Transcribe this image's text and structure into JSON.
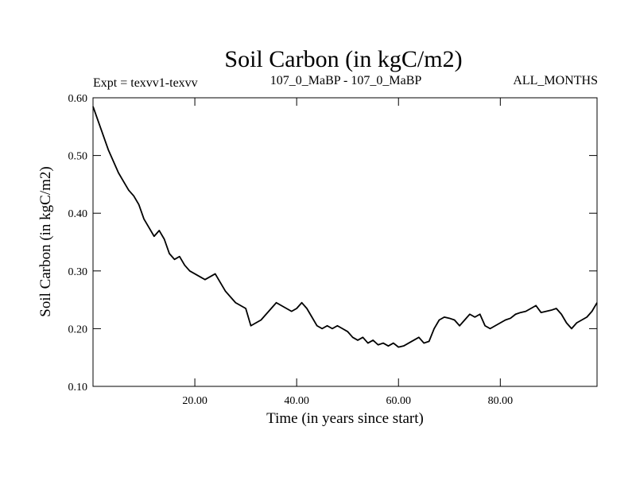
{
  "chart_data": {
    "type": "line",
    "title": "Soil Carbon (in kgC/m2)",
    "subtitle_left": "Expt = texvv1-texvv",
    "subtitle_center": "107_0_MaBP - 107_0_MaBP",
    "subtitle_right": "ALL_MONTHS",
    "xlabel": "Time (in years since start)",
    "ylabel": "Soil Carbon (in kgC/m2)",
    "xlim": [
      0,
      99
    ],
    "ylim": [
      0.1,
      0.6
    ],
    "xticks": [
      20,
      40,
      60,
      80
    ],
    "xtick_labels": [
      "20.00",
      "40.00",
      "60.00",
      "80.00"
    ],
    "yticks": [
      0.1,
      0.2,
      0.3,
      0.4,
      0.5,
      0.6
    ],
    "ytick_labels": [
      "0.10",
      "0.20",
      "0.30",
      "0.40",
      "0.50",
      "0.60"
    ],
    "grid": false,
    "series": [
      {
        "name": "Soil Carbon",
        "color": "#000000",
        "x": [
          0,
          1,
          2,
          3,
          4,
          5,
          6,
          7,
          8,
          9,
          10,
          11,
          12,
          13,
          14,
          15,
          16,
          17,
          18,
          19,
          20,
          21,
          22,
          23,
          24,
          25,
          26,
          27,
          28,
          29,
          30,
          31,
          32,
          33,
          34,
          35,
          36,
          37,
          38,
          39,
          40,
          41,
          42,
          43,
          44,
          45,
          46,
          47,
          48,
          49,
          50,
          51,
          52,
          53,
          54,
          55,
          56,
          57,
          58,
          59,
          60,
          61,
          62,
          63,
          64,
          65,
          66,
          67,
          68,
          69,
          70,
          71,
          72,
          73,
          74,
          75,
          76,
          77,
          78,
          79,
          80,
          81,
          82,
          83,
          84,
          85,
          86,
          87,
          88,
          89,
          90,
          91,
          92,
          93,
          94,
          95,
          96,
          97,
          98,
          99
        ],
        "values": [
          0.585,
          0.56,
          0.535,
          0.51,
          0.49,
          0.47,
          0.455,
          0.44,
          0.43,
          0.415,
          0.39,
          0.375,
          0.36,
          0.37,
          0.355,
          0.33,
          0.32,
          0.325,
          0.31,
          0.3,
          0.295,
          0.29,
          0.285,
          0.29,
          0.295,
          0.28,
          0.265,
          0.255,
          0.245,
          0.24,
          0.235,
          0.205,
          0.21,
          0.215,
          0.225,
          0.235,
          0.245,
          0.24,
          0.235,
          0.23,
          0.235,
          0.245,
          0.235,
          0.22,
          0.205,
          0.2,
          0.205,
          0.2,
          0.205,
          0.2,
          0.195,
          0.185,
          0.18,
          0.185,
          0.175,
          0.18,
          0.172,
          0.175,
          0.17,
          0.175,
          0.168,
          0.17,
          0.175,
          0.18,
          0.185,
          0.175,
          0.178,
          0.2,
          0.215,
          0.22,
          0.218,
          0.215,
          0.205,
          0.215,
          0.225,
          0.22,
          0.225,
          0.205,
          0.2,
          0.205,
          0.21,
          0.215,
          0.218,
          0.225,
          0.228,
          0.23,
          0.235,
          0.24,
          0.228,
          0.23,
          0.232,
          0.235,
          0.225,
          0.21,
          0.2,
          0.21,
          0.215,
          0.22,
          0.23,
          0.245
        ]
      }
    ]
  }
}
